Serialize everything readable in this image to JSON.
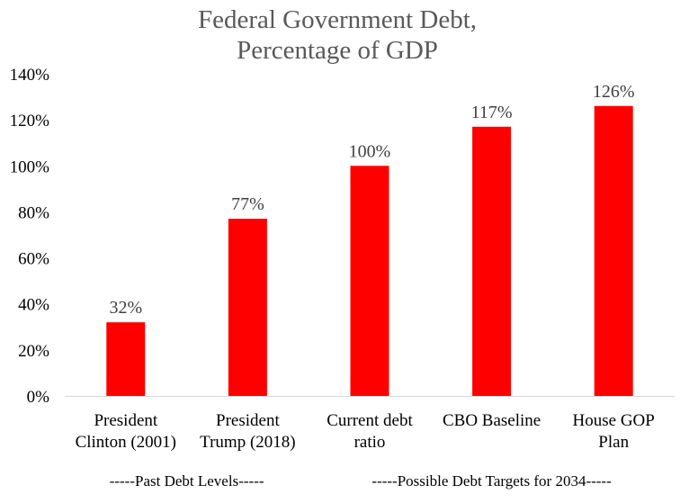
{
  "chart_data": {
    "type": "bar",
    "title": [
      "Federal Government Debt,",
      "Percentage of GDP"
    ],
    "categories": [
      [
        "President",
        "Clinton (2001)"
      ],
      [
        "President",
        "Trump (2018)"
      ],
      [
        "Current debt",
        "ratio"
      ],
      [
        "CBO Baseline"
      ],
      [
        "House GOP",
        "Plan"
      ]
    ],
    "values": [
      32,
      77,
      100,
      117,
      126
    ],
    "data_labels": [
      "32%",
      "77%",
      "100%",
      "117%",
      "126%"
    ],
    "ylim": [
      0,
      140
    ],
    "yticks": [
      0,
      20,
      40,
      60,
      80,
      100,
      120,
      140
    ],
    "ytick_labels": [
      "0%",
      "20%",
      "40%",
      "60%",
      "80%",
      "100%",
      "120%",
      "140%"
    ],
    "groups": [
      {
        "label": "-----Past Debt Levels-----",
        "categories": [
          0,
          1
        ]
      },
      {
        "label": "-----Possible Debt Targets for 2034-----",
        "categories": [
          2,
          3,
          4
        ]
      }
    ],
    "bar_color": "#ff0000",
    "grid": false,
    "legend": "none",
    "xlabel": "",
    "ylabel": ""
  }
}
